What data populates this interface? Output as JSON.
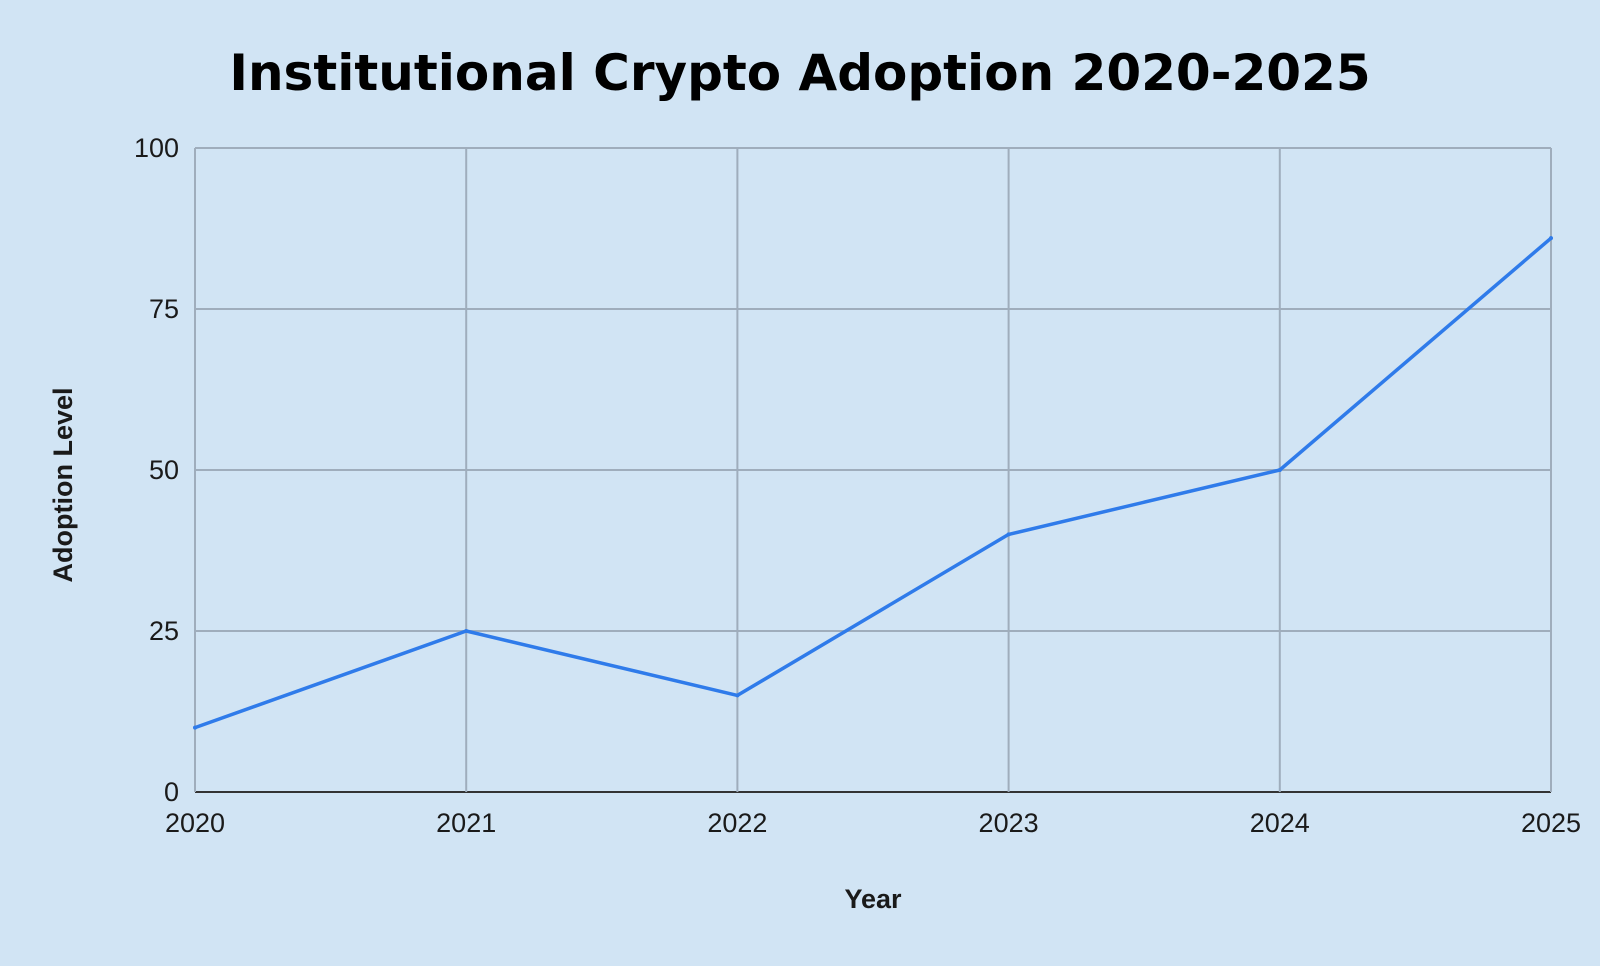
{
  "chart_data": {
    "type": "line",
    "title": "Institutional Crypto Adoption 2020-2025",
    "xlabel": "Year",
    "ylabel": "Adoption Level",
    "x": [
      "2020",
      "2021",
      "2022",
      "2023",
      "2024",
      "2025"
    ],
    "y_ticks": [
      "0",
      "25",
      "50",
      "75",
      "100"
    ],
    "ylim": [
      0,
      100
    ],
    "grid": true,
    "series": [
      {
        "values": [
          10,
          25,
          15,
          40,
          50,
          86
        ]
      }
    ],
    "colors": {
      "background": "#d1e4f4",
      "series": "#2f7bea",
      "grid": "#9fadbc"
    }
  }
}
